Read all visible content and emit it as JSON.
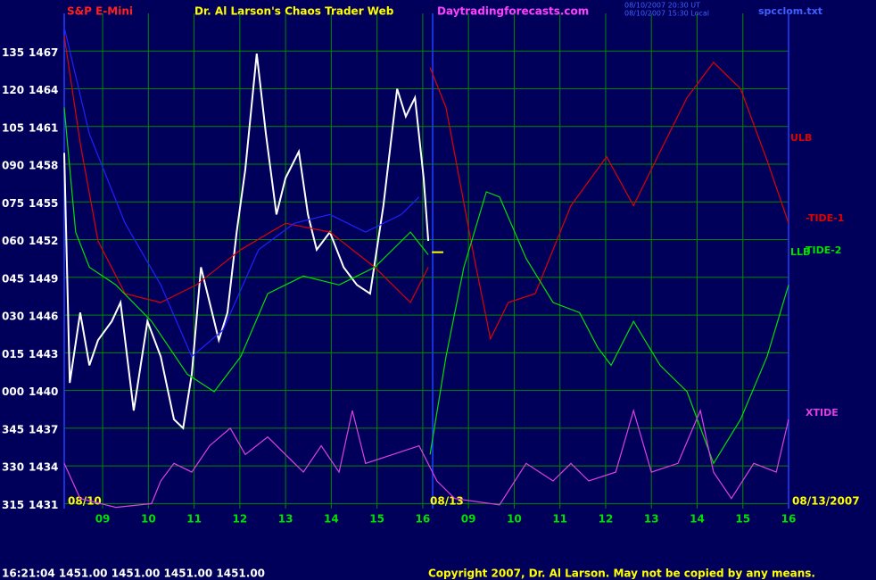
{
  "chart_data": {
    "type": "line",
    "header": {
      "symbol": "S&P E-Mini",
      "title": "Dr. Al Larson's Chaos Trader Web",
      "site": "Daytradingforecasts.com",
      "time_ut": "08/10/2007 20:30 UT",
      "time_local": "08/10/2007 15:30 Local",
      "file": "spcclom.txt"
    },
    "footer": {
      "quote": "16:21:04  1451.00 1451.00 1451.00 1451.00",
      "copyright": "Copyright 2007, Dr. Al Larson. May not be copied by any means."
    },
    "date_labels": [
      "08/10",
      "08/13",
      "08/13/2007"
    ],
    "xlim": [
      0.16,
      16
    ],
    "xticks": [
      {
        "value": 1,
        "label": "09"
      },
      {
        "value": 2,
        "label": "10"
      },
      {
        "value": 3,
        "label": "11"
      },
      {
        "value": 4,
        "label": "12"
      },
      {
        "value": 5,
        "label": "13"
      },
      {
        "value": 6,
        "label": "14"
      },
      {
        "value": 7,
        "label": "15"
      },
      {
        "value": 8,
        "label": "16"
      },
      {
        "value": 9,
        "label": "09"
      },
      {
        "value": 10,
        "label": "10"
      },
      {
        "value": 11,
        "label": "11"
      },
      {
        "value": 12,
        "label": "12"
      },
      {
        "value": 13,
        "label": "13"
      },
      {
        "value": 14,
        "label": "14"
      },
      {
        "value": 15,
        "label": "15"
      },
      {
        "value": 16,
        "label": "16"
      }
    ],
    "ylim": [
      1430.6,
      1470
    ],
    "yticks": [
      1431,
      1434,
      1437,
      1440,
      1443,
      1446,
      1449,
      1452,
      1455,
      1458,
      1461,
      1464,
      1467
    ],
    "ytick_prefixes": [
      "315",
      "330",
      "345",
      "000",
      "015",
      "030",
      "045",
      "060",
      "075",
      "090",
      "105",
      "120",
      "135"
    ],
    "grid": true,
    "last_price": 1451,
    "series": [
      {
        "color": "#ffffff",
        "x": [
          0.16,
          0.28,
          0.51,
          0.71,
          0.9,
          1.2,
          1.39,
          1.68,
          1.98,
          2.27,
          2.56,
          2.76,
          2.95,
          3.15,
          3.34,
          3.54,
          3.73,
          3.93,
          4.12,
          4.37,
          4.57,
          4.8,
          5.0,
          5.29,
          5.49,
          5.68,
          5.97,
          6.27,
          6.56,
          6.85,
          7.14,
          7.44,
          7.63,
          7.83,
          8.02,
          8.12
        ],
        "values": [
          1458.9,
          1440.6,
          1446.2,
          1442,
          1444,
          1445.5,
          1447,
          1438.4,
          1445.5,
          1442.7,
          1437.7,
          1437,
          1441.3,
          1449.8,
          1447,
          1444,
          1446.2,
          1452.6,
          1457.6,
          1466.8,
          1460.4,
          1454,
          1456.9,
          1459,
          1454,
          1451.2,
          1452.6,
          1449.8,
          1448.4,
          1447.7,
          1454.7,
          1464,
          1461.8,
          1463.3,
          1456.9,
          1451.9
        ]
      },
      {
        "name": "ULB",
        "color": "#e00000",
        "x": [
          0.16,
          0.51,
          0.9,
          1.49,
          2.27,
          3.05,
          4.02,
          5.0,
          5.97,
          6.95,
          7.73,
          8.12
        ],
        "values": [
          1468.2,
          1459.7,
          1451.9,
          1447.7,
          1447,
          1448.4,
          1451.2,
          1453.3,
          1452.6,
          1449.8,
          1447,
          1449.8
        ]
      },
      {
        "name": "LLB",
        "color": "#00e000",
        "x": [
          0.16,
          0.41,
          0.71,
          1.29,
          2.07,
          2.85,
          3.44,
          4.02,
          4.61,
          5.39,
          6.17,
          6.95,
          7.73,
          8.12
        ],
        "values": [
          1462.5,
          1452.6,
          1449.8,
          1448.4,
          1445.5,
          1441.3,
          1439.9,
          1442.7,
          1447.7,
          1449.1,
          1448.4,
          1449.8,
          1452.6,
          1450.8
        ]
      },
      {
        "color": "#2020ff",
        "x": [
          0.16,
          0.71,
          1.49,
          2.27,
          2.95,
          3.63,
          4.41,
          5.19,
          5.97,
          6.75,
          7.53,
          7.92
        ],
        "values": [
          1468.9,
          1460.4,
          1453.3,
          1448.4,
          1442.7,
          1444.8,
          1451.2,
          1453.3,
          1454,
          1452.6,
          1454,
          1455.4
        ]
      },
      {
        "name": "-TIDE-1",
        "color": "#e00000",
        "x": [
          8.16,
          8.51,
          9.09,
          9.48,
          9.87,
          10.46,
          11.24,
          12.02,
          12.61,
          13.19,
          13.78,
          14.36,
          14.95,
          15.53,
          16.0
        ],
        "values": [
          1465.7,
          1462.5,
          1451.2,
          1444.1,
          1447,
          1447.7,
          1454.7,
          1458.6,
          1454.7,
          1459,
          1463.3,
          1466.1,
          1464,
          1458.3,
          1453.3
        ]
      },
      {
        "name": "TIDE-2",
        "color": "#00e000",
        "x": [
          8.16,
          8.51,
          8.9,
          9.39,
          9.68,
          10.26,
          10.85,
          11.43,
          11.83,
          12.12,
          12.61,
          13.19,
          13.78,
          14.36,
          14.95,
          15.53,
          16.0
        ],
        "values": [
          1434.9,
          1442.7,
          1449.8,
          1455.8,
          1455.4,
          1450.5,
          1447,
          1446.2,
          1443.4,
          1442,
          1445.5,
          1442,
          1439.9,
          1434.2,
          1437.7,
          1442.7,
          1448.4
        ]
      },
      {
        "name": "XTIDE",
        "color": "#e040e0",
        "x": [
          0.16,
          0.51,
          1.29,
          2.07,
          2.27,
          2.56,
          2.95,
          3.34,
          3.79,
          4.12,
          4.61,
          5.0,
          5.39,
          5.78,
          6.17,
          6.46,
          6.75,
          7.34,
          7.92,
          8.31,
          8.7,
          9.68,
          10.26,
          10.85,
          11.24,
          11.63,
          12.22,
          12.61,
          13.0,
          13.58,
          14.07,
          14.36,
          14.75,
          15.24,
          15.73,
          16.0
        ],
        "values": [
          1434.2,
          1431.4,
          1430.7,
          1431,
          1432.8,
          1434.2,
          1433.5,
          1435.6,
          1437,
          1434.9,
          1436.3,
          1434.9,
          1433.5,
          1435.6,
          1433.5,
          1438.4,
          1434.2,
          1434.9,
          1435.6,
          1432.8,
          1431.4,
          1430.9,
          1434.2,
          1432.8,
          1434.2,
          1432.8,
          1433.5,
          1438.4,
          1433.5,
          1434.2,
          1438.4,
          1433.5,
          1431.4,
          1434.2,
          1433.5,
          1437.7
        ]
      }
    ]
  }
}
